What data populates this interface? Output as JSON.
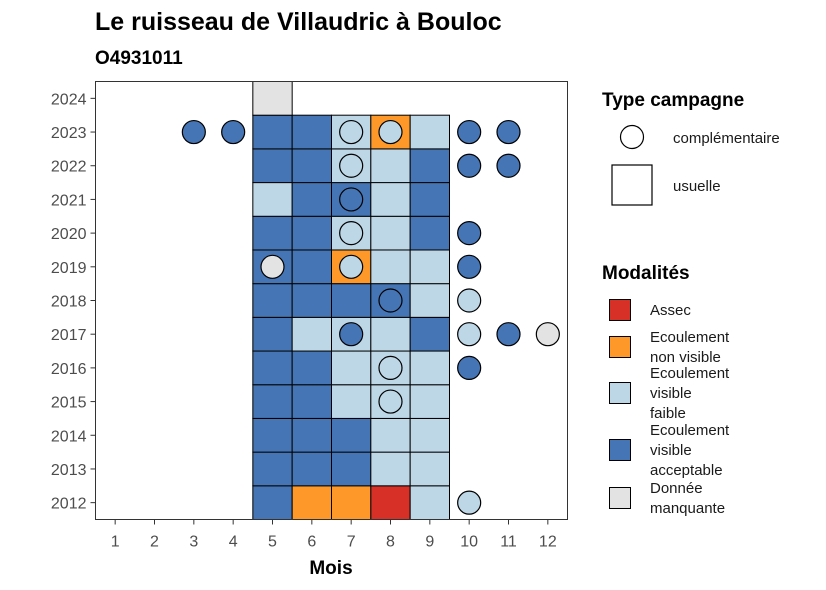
{
  "chart_data": {
    "type": "heatmap",
    "title": "Le ruisseau de Villaudric à Bouloc",
    "subtitle": "O4931011",
    "xlabel": "Mois",
    "ylabel": "",
    "x_ticks": [
      "1",
      "2",
      "3",
      "4",
      "5",
      "6",
      "7",
      "8",
      "9",
      "10",
      "11",
      "12"
    ],
    "y_ticks": [
      "2012",
      "2013",
      "2014",
      "2015",
      "2016",
      "2017",
      "2018",
      "2019",
      "2020",
      "2021",
      "2022",
      "2023",
      "2024"
    ],
    "xlim": [
      0.5,
      12.5
    ],
    "ylim": [
      2011.5,
      2024.5
    ],
    "colors": {
      "assec": "#d73027",
      "non_visible": "#fe9929",
      "faible": "#bdd7e7",
      "acceptable": "#4575b4",
      "manquante": "#e3e3e3"
    },
    "legend_campagne": {
      "title": "Type campagne",
      "items": [
        {
          "key": "complementaire",
          "label": "complémentaire"
        },
        {
          "key": "usuelle",
          "label": "usuelle"
        }
      ]
    },
    "legend_modalites": {
      "title": "Modalités",
      "items": [
        {
          "key": "assec",
          "lines": [
            "Assec"
          ]
        },
        {
          "key": "non_visible",
          "lines": [
            "Ecoulement",
            "non visible"
          ]
        },
        {
          "key": "faible",
          "lines": [
            "Ecoulement",
            "visible",
            "faible"
          ]
        },
        {
          "key": "acceptable",
          "lines": [
            "Ecoulement",
            "visible",
            "acceptable"
          ]
        },
        {
          "key": "manquante",
          "lines": [
            "Donnée",
            "manquante"
          ]
        }
      ]
    },
    "usuelle": [
      {
        "year": 2012,
        "values": {
          "5": "acceptable",
          "6": "non_visible",
          "7": "non_visible",
          "8": "assec",
          "9": "faible"
        }
      },
      {
        "year": 2013,
        "values": {
          "5": "acceptable",
          "6": "acceptable",
          "7": "acceptable",
          "8": "faible",
          "9": "faible"
        }
      },
      {
        "year": 2014,
        "values": {
          "5": "acceptable",
          "6": "acceptable",
          "7": "acceptable",
          "8": "faible",
          "9": "faible"
        }
      },
      {
        "year": 2015,
        "values": {
          "5": "acceptable",
          "6": "acceptable",
          "7": "faible",
          "8": "faible",
          "9": "faible"
        }
      },
      {
        "year": 2016,
        "values": {
          "5": "acceptable",
          "6": "acceptable",
          "7": "faible",
          "8": "faible",
          "9": "faible"
        }
      },
      {
        "year": 2017,
        "values": {
          "5": "acceptable",
          "6": "faible",
          "7": "faible",
          "8": "faible",
          "9": "acceptable"
        }
      },
      {
        "year": 2018,
        "values": {
          "5": "acceptable",
          "6": "acceptable",
          "7": "acceptable",
          "8": "acceptable",
          "9": "faible"
        }
      },
      {
        "year": 2019,
        "values": {
          "5": "acceptable",
          "6": "acceptable",
          "7": "non_visible",
          "8": "faible",
          "9": "faible"
        }
      },
      {
        "year": 2020,
        "values": {
          "5": "acceptable",
          "6": "acceptable",
          "7": "faible",
          "8": "faible",
          "9": "acceptable"
        }
      },
      {
        "year": 2021,
        "values": {
          "5": "faible",
          "6": "acceptable",
          "7": "acceptable",
          "8": "faible",
          "9": "acceptable"
        }
      },
      {
        "year": 2022,
        "values": {
          "5": "acceptable",
          "6": "acceptable",
          "7": "faible",
          "8": "faible",
          "9": "acceptable"
        }
      },
      {
        "year": 2023,
        "values": {
          "5": "acceptable",
          "6": "acceptable",
          "7": "faible",
          "8": "non_visible",
          "9": "faible"
        }
      },
      {
        "year": 2024,
        "values": {
          "5": "manquante"
        }
      }
    ],
    "complementaire": [
      {
        "year": 2012,
        "month": 10,
        "value": "faible"
      },
      {
        "year": 2015,
        "month": 8,
        "value": "faible"
      },
      {
        "year": 2016,
        "month": 8,
        "value": "faible"
      },
      {
        "year": 2016,
        "month": 10,
        "value": "acceptable"
      },
      {
        "year": 2017,
        "month": 7,
        "value": "acceptable"
      },
      {
        "year": 2017,
        "month": 10,
        "value": "faible"
      },
      {
        "year": 2017,
        "month": 11,
        "value": "acceptable"
      },
      {
        "year": 2017,
        "month": 12,
        "value": "manquante"
      },
      {
        "year": 2018,
        "month": 8,
        "value": "acceptable"
      },
      {
        "year": 2018,
        "month": 10,
        "value": "faible"
      },
      {
        "year": 2019,
        "month": 5,
        "value": "manquante"
      },
      {
        "year": 2019,
        "month": 7,
        "value": "faible"
      },
      {
        "year": 2019,
        "month": 10,
        "value": "acceptable"
      },
      {
        "year": 2020,
        "month": 7,
        "value": "faible"
      },
      {
        "year": 2020,
        "month": 10,
        "value": "acceptable"
      },
      {
        "year": 2021,
        "month": 7,
        "value": "acceptable"
      },
      {
        "year": 2022,
        "month": 7,
        "value": "faible"
      },
      {
        "year": 2022,
        "month": 10,
        "value": "acceptable"
      },
      {
        "year": 2022,
        "month": 11,
        "value": "acceptable"
      },
      {
        "year": 2023,
        "month": 3,
        "value": "acceptable"
      },
      {
        "year": 2023,
        "month": 4,
        "value": "acceptable"
      },
      {
        "year": 2023,
        "month": 7,
        "value": "faible"
      },
      {
        "year": 2023,
        "month": 8,
        "value": "faible"
      },
      {
        "year": 2023,
        "month": 10,
        "value": "acceptable"
      },
      {
        "year": 2023,
        "month": 11,
        "value": "acceptable"
      }
    ]
  }
}
